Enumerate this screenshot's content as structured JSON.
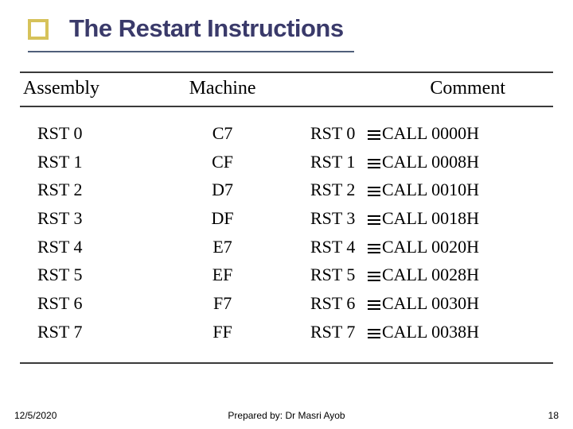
{
  "colors": {
    "text": "#000000",
    "title_text": "#3a3a6a",
    "accent_square_border": "#d6c25a",
    "title_underline": "#4f5f7a",
    "table_border": "#3a3a3a",
    "background": "#ffffff"
  },
  "typography": {
    "title_font": "Verdana",
    "title_fontsize_pt": 24,
    "body_font": "Times New Roman",
    "body_fontsize_pt": 17,
    "header_fontsize_pt": 18,
    "footer_font": "Verdana",
    "footer_fontsize_pt": 9
  },
  "title": "The Restart Instructions",
  "table": {
    "columns": [
      "Assembly",
      "Machine",
      "Comment"
    ],
    "rows": [
      {
        "assembly": "RST 0",
        "machine": "C7",
        "comment_asm": "RST 0",
        "comment_call": "CALL 0000H"
      },
      {
        "assembly": "RST 1",
        "machine": "CF",
        "comment_asm": "RST 1",
        "comment_call": "CALL 0008H"
      },
      {
        "assembly": "RST 2",
        "machine": "D7",
        "comment_asm": "RST 2",
        "comment_call": "CALL 0010H"
      },
      {
        "assembly": "RST 3",
        "machine": "DF",
        "comment_asm": "RST 3",
        "comment_call": "CALL 0018H"
      },
      {
        "assembly": "RST 4",
        "machine": "E7",
        "comment_asm": "RST 4",
        "comment_call": "CALL 0020H"
      },
      {
        "assembly": "RST 5",
        "machine": "EF",
        "comment_asm": "RST 5",
        "comment_call": "CALL 0028H"
      },
      {
        "assembly": "RST 6",
        "machine": "F7",
        "comment_asm": "RST 6",
        "comment_call": "CALL 0030H"
      },
      {
        "assembly": "RST 7",
        "machine": "FF",
        "comment_asm": "RST 7",
        "comment_call": "CALL 0038H"
      }
    ]
  },
  "footer": {
    "date": "12/5/2020",
    "author": "Prepared by: Dr Masri Ayob",
    "page": "18"
  }
}
